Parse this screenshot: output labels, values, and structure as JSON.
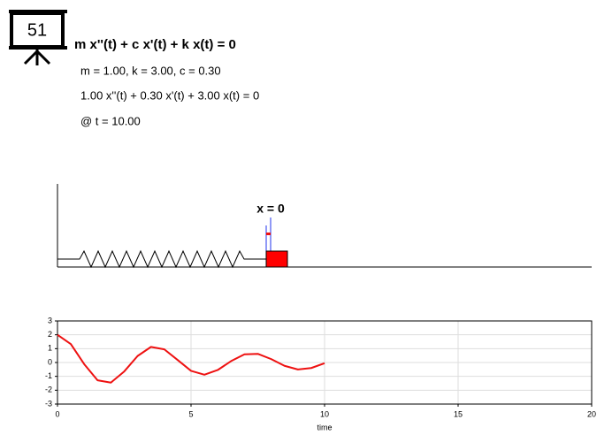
{
  "header": {
    "counter": "51",
    "equation": "m x''(t) + c x'(t) + k x(t) = 0",
    "params": "m = 1.00, k = 3.00, c = 0.30",
    "instance": "1.00 x''(t) + 0.30 x'(t) + 3.00 x(t) = 0",
    "time": "@ t = 10.00"
  },
  "scene": {
    "label": "x = 0"
  },
  "chart_data": {
    "type": "line",
    "xlabel": "time",
    "x": [
      0,
      0.5,
      1,
      1.5,
      2,
      2.5,
      3,
      3.5,
      4,
      4.5,
      5,
      5.5,
      6,
      6.5,
      7,
      7.5,
      8,
      8.5,
      9,
      9.5,
      10
    ],
    "values": [
      2,
      1.329,
      -0.118,
      -1.286,
      -1.45,
      -0.644,
      0.471,
      1.125,
      0.949,
      0.179,
      -0.601,
      -0.88,
      -0.542,
      0.101,
      0.59,
      0.625,
      0.247,
      -0.24,
      -0.502,
      -0.399,
      -0.049
    ],
    "color": "#ee1111",
    "xlim": [
      0,
      20
    ],
    "xticks": [
      0,
      5,
      10,
      15,
      20
    ],
    "ylim": [
      -3,
      3
    ],
    "yticks": [
      -3,
      -2,
      -1,
      0,
      1,
      2,
      3
    ],
    "grid": true
  }
}
